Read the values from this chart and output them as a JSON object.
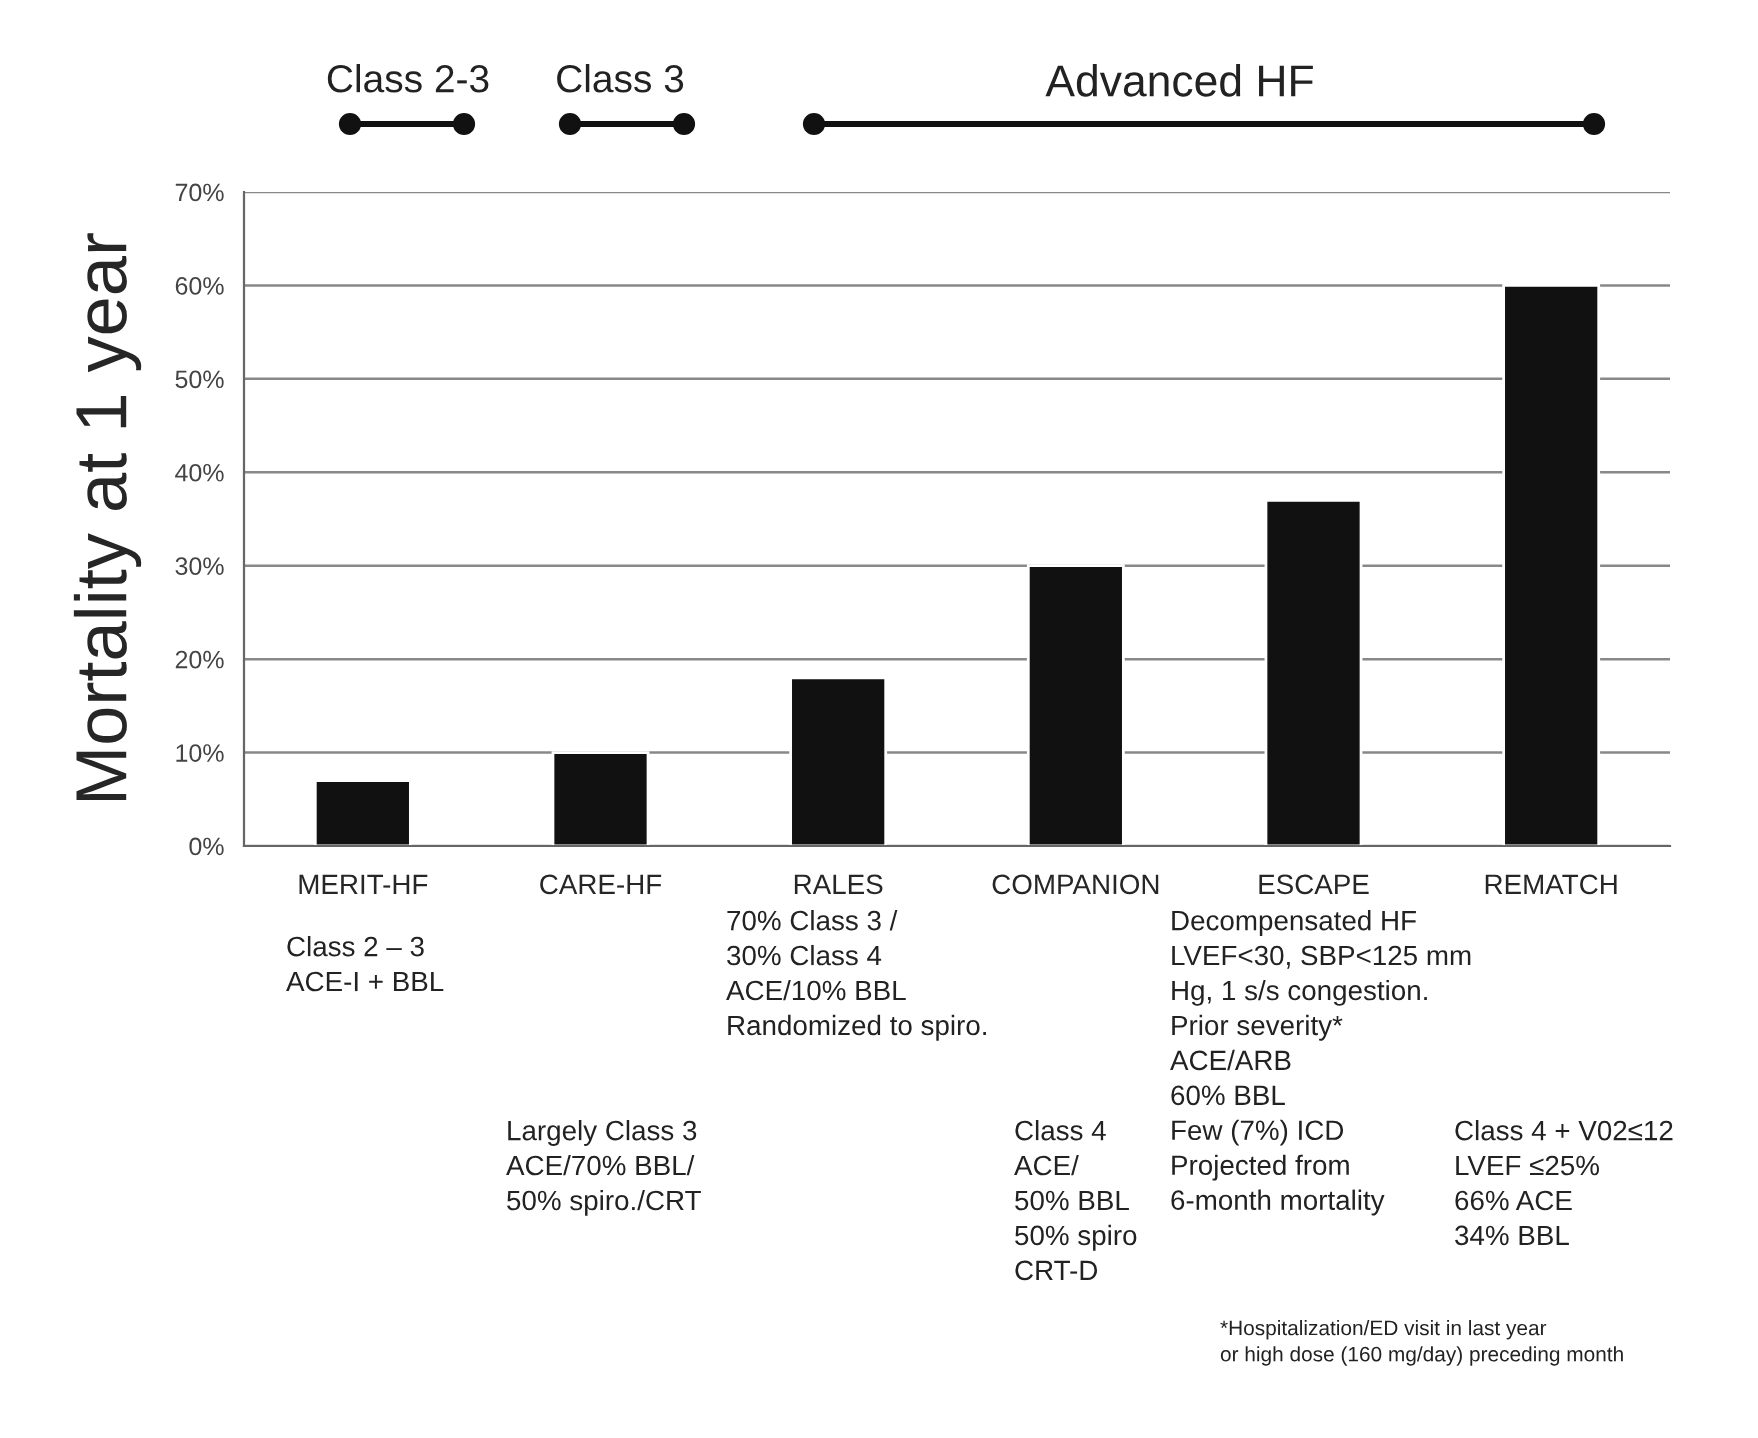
{
  "chart_data": {
    "type": "bar",
    "ylabel": "Mortality at 1 year",
    "categories": [
      "MERIT-HF",
      "CARE-HF",
      "RALES",
      "COMPANION",
      "ESCAPE",
      "REMATCH"
    ],
    "values": [
      7,
      10,
      18,
      30,
      37,
      60
    ],
    "color": "#111111",
    "ylim": [
      0,
      70
    ],
    "yticks": [
      {
        "value": 0,
        "label": "0%"
      },
      {
        "value": 10,
        "label": "10%"
      },
      {
        "value": 20,
        "label": "20%"
      },
      {
        "value": 30,
        "label": "30%"
      },
      {
        "value": 40,
        "label": "40%"
      },
      {
        "value": 50,
        "label": "50%"
      },
      {
        "value": 60,
        "label": "60%"
      },
      {
        "value": 70,
        "label": "70%"
      }
    ],
    "grid": "y",
    "annotations": [
      "Class 2-3",
      "Class 3",
      "Advanced HF",
      "Class 2 – 3\nACE-I + BBL",
      "70% Class 3 /\n30% Class 4\nACE/10% BBL\nRandomized to spiro.",
      "Largely Class 3\nACE/70% BBL/\n50% spiro./CRT",
      "Class 4\nACE/\n50% BBL\n50% spiro\nCRT-D",
      "Decompensated HF\nLVEF<30, SBP<125 mm\nHg, 1 s/s congestion.\nPrior severity*\nACE/ARB\n60% BBL\nFew (7%) ICD\nProjected from\n6-month mortality",
      "Class 4 + V02≤12\nLVEF ≤25%\n66% ACE\n34% BBL",
      "*Hospitalization/ED visit in last year\nor high dose (160 mg/day) preceding month"
    ]
  }
}
